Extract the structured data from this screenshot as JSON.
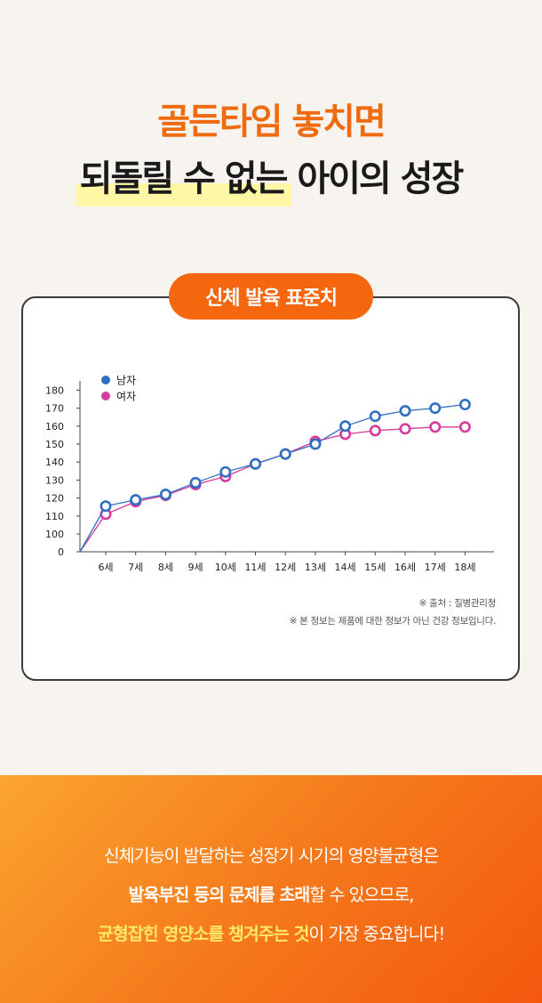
{
  "header": {
    "line1": "골든타임 놓치면",
    "line2_highlight": "되돌릴 수 없는",
    "line2_rest": "아이의 성장"
  },
  "card": {
    "title": "신체 발육 표준치",
    "source_note": "※ 출처 : 질병관리청",
    "disclaimer": "※ 본 정보는 제품에 대한 정보가 아닌 건강 정보입니다."
  },
  "chart_data": {
    "type": "line",
    "x": [
      "",
      "6세",
      "7세",
      "8세",
      "9세",
      "10세",
      "11세",
      "12세",
      "13세",
      "14세",
      "15세",
      "16세",
      "17세",
      "18세"
    ],
    "yticks": [
      0,
      100,
      110,
      120,
      130,
      140,
      150,
      160,
      170,
      180
    ],
    "ylim": [
      0,
      180
    ],
    "y_axis_break": true,
    "legend_position": "top-left",
    "grid": false,
    "series": [
      {
        "name": "남자",
        "color": "#2f6fc2",
        "values": [
          0,
          115.5,
          119,
          122,
          128.5,
          134.5,
          139,
          144.5,
          150,
          160,
          165.5,
          168.5,
          170,
          172
        ]
      },
      {
        "name": "여자",
        "color": "#d63a9a",
        "values": [
          0,
          111,
          118,
          121.5,
          127.5,
          132,
          139,
          144.5,
          151.5,
          155.5,
          157.5,
          158.5,
          159.5,
          159.5
        ]
      }
    ]
  },
  "bottom": {
    "line1": "신체기능이 발달하는 성장기 시기의 영양불균형은",
    "line2_bold": "발육부진 등의 문제를 초래",
    "line2_rest": "할 수 있으므로,",
    "line3_yellow_1": "균형잡힌 영양소를 챙겨주는 것",
    "line3_rest": "이 가장 중요합니다!"
  }
}
